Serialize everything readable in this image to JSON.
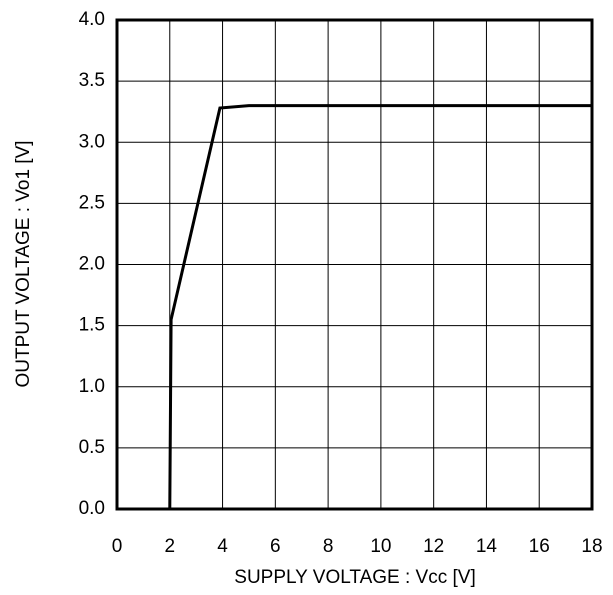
{
  "chart_data": {
    "type": "line",
    "x_label": "SUPPLY VOLTAGE : Vcc  [V]",
    "y_label": "OUTPUT VOLTAGE : Vo1  [V]",
    "series": [
      {
        "color": "#000000",
        "x": [
          2.0,
          2.05,
          3.9,
          5.0,
          18
        ],
        "values": [
          0,
          1.55,
          3.28,
          3.3,
          3.3
        ]
      }
    ],
    "xlim": [
      0,
      18
    ],
    "xticks": [
      0,
      2,
      4,
      6,
      8,
      10,
      12,
      14,
      16,
      18
    ],
    "ylim": [
      0,
      4
    ],
    "yticks": [
      {
        "value": 0,
        "label": "0.0"
      },
      {
        "value": 0.5,
        "label": "0.5"
      },
      {
        "value": 1,
        "label": "1.0"
      },
      {
        "value": 1.5,
        "label": "1.5"
      },
      {
        "value": 2,
        "label": "2.0"
      },
      {
        "value": 2.5,
        "label": "2.5"
      },
      {
        "value": 3,
        "label": "3.0"
      },
      {
        "value": 3.5,
        "label": "3.5"
      },
      {
        "value": 4,
        "label": "4.0"
      }
    ],
    "grid": true
  }
}
